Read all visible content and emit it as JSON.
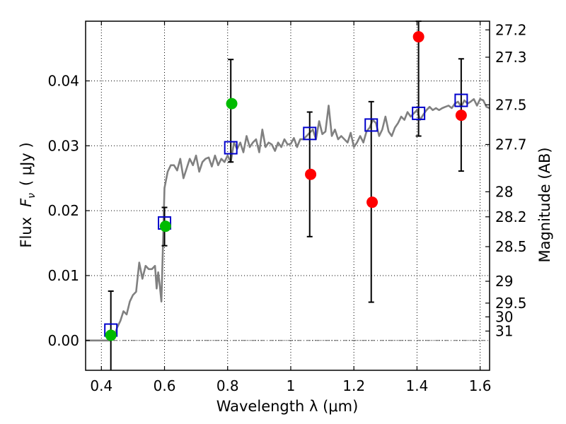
{
  "chart_data": {
    "type": "scatter",
    "xlabel": "Wavelength  λ (μm)",
    "ylabel": "Flux  F_ν  ( μJy )",
    "ylabel_parts": {
      "prefix": "Flux",
      "symbol": "F",
      "subscript": "ν",
      "unit": "( μJy )"
    },
    "y2label": "Magnitude (AB)",
    "xlim": [
      0.35,
      1.63
    ],
    "ylim": [
      -0.0046,
      0.0492
    ],
    "grid": true,
    "zero_line": true,
    "x_ticks": [
      {
        "value": 0.4,
        "label": "0.4"
      },
      {
        "value": 0.6,
        "label": "0.6"
      },
      {
        "value": 0.8,
        "label": "0.8"
      },
      {
        "value": 1.0,
        "label": "1"
      },
      {
        "value": 1.2,
        "label": "1.2"
      },
      {
        "value": 1.4,
        "label": "1.4"
      },
      {
        "value": 1.6,
        "label": "1.6"
      }
    ],
    "y_ticks": [
      {
        "value": 0.0,
        "label": "0.00"
      },
      {
        "value": 0.01,
        "label": "0.01"
      },
      {
        "value": 0.02,
        "label": "0.02"
      },
      {
        "value": 0.03,
        "label": "0.03"
      },
      {
        "value": 0.04,
        "label": "0.04"
      }
    ],
    "y2_ticks": [
      {
        "value": 27.2,
        "label": "27.2"
      },
      {
        "value": 27.3,
        "label": "27.3"
      },
      {
        "value": 27.5,
        "label": "27.5"
      },
      {
        "value": 27.7,
        "label": "27.7"
      },
      {
        "value": 28.0,
        "label": "28"
      },
      {
        "value": 28.2,
        "label": "28.2"
      },
      {
        "value": 28.5,
        "label": "28.5"
      },
      {
        "value": 29.0,
        "label": "29"
      },
      {
        "value": 29.5,
        "label": "29.5"
      },
      {
        "value": 30.0,
        "label": "30"
      },
      {
        "value": 31.0,
        "label": "31"
      }
    ],
    "template_spectrum": {
      "color": "#808080",
      "x": [
        0.35,
        0.43,
        0.44,
        0.45,
        0.46,
        0.47,
        0.48,
        0.49,
        0.5,
        0.51,
        0.52,
        0.53,
        0.54,
        0.55,
        0.56,
        0.57,
        0.575,
        0.58,
        0.585,
        0.59,
        0.595,
        0.6,
        0.61,
        0.62,
        0.63,
        0.64,
        0.65,
        0.66,
        0.67,
        0.68,
        0.69,
        0.7,
        0.71,
        0.72,
        0.73,
        0.74,
        0.75,
        0.76,
        0.77,
        0.78,
        0.79,
        0.8,
        0.81,
        0.82,
        0.83,
        0.84,
        0.85,
        0.86,
        0.87,
        0.88,
        0.89,
        0.9,
        0.91,
        0.92,
        0.93,
        0.94,
        0.95,
        0.96,
        0.97,
        0.98,
        0.99,
        1.0,
        1.01,
        1.02,
        1.03,
        1.04,
        1.05,
        1.06,
        1.07,
        1.08,
        1.09,
        1.1,
        1.11,
        1.12,
        1.13,
        1.14,
        1.15,
        1.16,
        1.17,
        1.18,
        1.19,
        1.2,
        1.21,
        1.22,
        1.23,
        1.24,
        1.25,
        1.26,
        1.27,
        1.28,
        1.29,
        1.3,
        1.31,
        1.32,
        1.33,
        1.34,
        1.35,
        1.36,
        1.37,
        1.38,
        1.39,
        1.4,
        1.41,
        1.42,
        1.43,
        1.44,
        1.45,
        1.46,
        1.47,
        1.48,
        1.49,
        1.5,
        1.51,
        1.52,
        1.53,
        1.54,
        1.55,
        1.56,
        1.57,
        1.58,
        1.59,
        1.6,
        1.61,
        1.62,
        1.63
      ],
      "y": [
        0.0,
        0.0,
        0.0005,
        0.002,
        0.003,
        0.0045,
        0.004,
        0.006,
        0.007,
        0.0075,
        0.012,
        0.0095,
        0.0115,
        0.011,
        0.011,
        0.0115,
        0.008,
        0.0105,
        0.0085,
        0.006,
        0.0145,
        0.0235,
        0.026,
        0.027,
        0.027,
        0.0262,
        0.028,
        0.025,
        0.0265,
        0.028,
        0.027,
        0.0285,
        0.026,
        0.0275,
        0.028,
        0.0282,
        0.0268,
        0.0285,
        0.027,
        0.028,
        0.0275,
        0.0285,
        0.0275,
        0.0305,
        0.0295,
        0.0305,
        0.029,
        0.0315,
        0.0298,
        0.0305,
        0.031,
        0.029,
        0.0325,
        0.0298,
        0.0305,
        0.0302,
        0.0292,
        0.0305,
        0.0298,
        0.031,
        0.0302,
        0.0303,
        0.0312,
        0.0298,
        0.031,
        0.031,
        0.0315,
        0.032,
        0.0325,
        0.031,
        0.0338,
        0.0318,
        0.0322,
        0.0362,
        0.0315,
        0.0325,
        0.031,
        0.0315,
        0.031,
        0.0305,
        0.032,
        0.0298,
        0.0305,
        0.0315,
        0.0305,
        0.0322,
        0.0328,
        0.034,
        0.0335,
        0.0315,
        0.0325,
        0.0345,
        0.0322,
        0.0315,
        0.0328,
        0.0335,
        0.0345,
        0.034,
        0.0352,
        0.0345,
        0.035,
        0.0355,
        0.034,
        0.0348,
        0.0355,
        0.036,
        0.0355,
        0.0358,
        0.0355,
        0.0358,
        0.036,
        0.0362,
        0.0358,
        0.0365,
        0.0368,
        0.036,
        0.037,
        0.0365,
        0.0368,
        0.0372,
        0.0362,
        0.0372,
        0.037,
        0.036,
        0.0358
      ]
    },
    "series": [
      {
        "marker": "open-square",
        "color": "#0000cc",
        "x": [
          0.43,
          0.6,
          0.81,
          1.06,
          1.255,
          1.405,
          1.54
        ],
        "y": [
          0.0016,
          0.0181,
          0.0297,
          0.0319,
          0.0332,
          0.035,
          0.037
        ]
      },
      {
        "marker": "filled-circle",
        "color": "#00bb00",
        "x": [
          0.43,
          0.603,
          0.813
        ],
        "y": [
          0.0008,
          0.0176,
          0.0365
        ],
        "yerr": [
          0.0068,
          0.003,
          0
        ]
      },
      {
        "marker": "filled-circle",
        "color": "#ff0000",
        "x": [
          1.063,
          1.258,
          1.405,
          1.54
        ],
        "y": [
          0.0256,
          0.0213,
          0.0468,
          0.0347
        ],
        "yerr": [
          0.0095,
          0.0155,
          0.0155,
          0.0087
        ]
      }
    ],
    "error_bars": [
      {
        "x": 0.43,
        "low": -0.0046,
        "high": 0.0076
      },
      {
        "x": 0.6,
        "low": 0.0146,
        "high": 0.0205
      },
      {
        "x": 0.81,
        "low": 0.0275,
        "high": 0.0433
      },
      {
        "x": 1.06,
        "low": 0.016,
        "high": 0.0352
      },
      {
        "x": 1.255,
        "low": 0.0059,
        "high": 0.0368
      },
      {
        "x": 1.405,
        "low": 0.0315,
        "high": 0.0492
      },
      {
        "x": 1.54,
        "low": 0.0261,
        "high": 0.0434
      }
    ]
  }
}
